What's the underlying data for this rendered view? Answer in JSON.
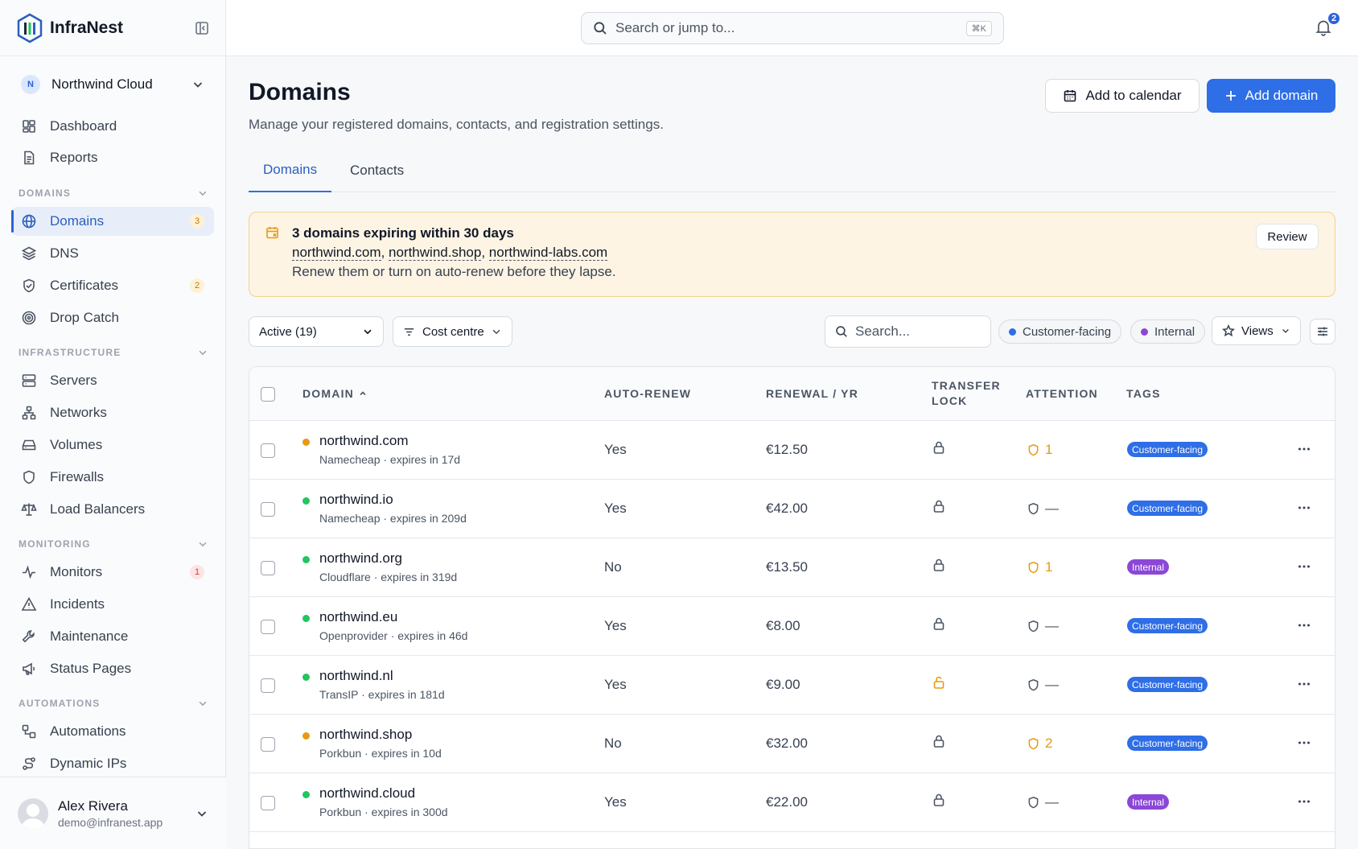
{
  "app": {
    "name": "InfraNest"
  },
  "org": {
    "initial": "N",
    "name": "Northwind Cloud"
  },
  "nav": {
    "top": [
      {
        "label": "Dashboard"
      },
      {
        "label": "Reports"
      }
    ],
    "sections": [
      {
        "title": "DOMAINS",
        "items": [
          {
            "label": "Domains",
            "badge": "3"
          },
          {
            "label": "DNS"
          },
          {
            "label": "Certificates",
            "badge": "2"
          },
          {
            "label": "Drop Catch"
          }
        ]
      },
      {
        "title": "INFRASTRUCTURE",
        "items": [
          {
            "label": "Servers"
          },
          {
            "label": "Networks"
          },
          {
            "label": "Volumes"
          },
          {
            "label": "Firewalls"
          },
          {
            "label": "Load Balancers"
          }
        ]
      },
      {
        "title": "MONITORING",
        "items": [
          {
            "label": "Monitors",
            "badge": "1"
          },
          {
            "label": "Incidents"
          },
          {
            "label": "Maintenance"
          },
          {
            "label": "Status Pages"
          }
        ]
      },
      {
        "title": "AUTOMATIONS",
        "items": [
          {
            "label": "Automations"
          },
          {
            "label": "Dynamic IPs"
          }
        ]
      }
    ]
  },
  "user": {
    "name": "Alex Rivera",
    "email": "demo@infranest.app"
  },
  "topbar": {
    "search_placeholder": "Search or jump to...",
    "shortcut": "⌘K",
    "notification_count": "2"
  },
  "page": {
    "title": "Domains",
    "subtitle": "Manage your registered domains, contacts, and registration settings.",
    "add_calendar_label": "Add to calendar",
    "add_domain_label": "Add domain"
  },
  "tabs": [
    {
      "label": "Domains"
    },
    {
      "label": "Contacts"
    }
  ],
  "alert": {
    "title": "3 domains expiring within 30 days",
    "links": [
      "northwind.com",
      "northwind.shop",
      "northwind-labs.com"
    ],
    "text": "Renew them or turn on auto-renew before they lapse.",
    "review_label": "Review"
  },
  "filters": {
    "status_selected": "Active (19)",
    "cost_centre_label": "Cost centre",
    "search_placeholder": "Search...",
    "chips": [
      {
        "label": "Customer-facing",
        "color": "#2e6ee6"
      },
      {
        "label": "Internal",
        "color": "#8b47d6"
      }
    ],
    "views_label": "Views"
  },
  "table": {
    "columns": {
      "domain": "DOMAIN",
      "auto_renew": "AUTO-RENEW",
      "renewal": "RENEWAL / YR",
      "transfer_lock_1": "TRANSFER",
      "transfer_lock_2": "LOCK",
      "attention": "ATTENTION",
      "tags": "TAGS"
    },
    "rows": [
      {
        "name": "northwind.com",
        "meta": "Namecheap · expires in 17d",
        "status": "warning",
        "auto_renew": "Yes",
        "renewal": "€12.50",
        "locked": true,
        "attention": "1",
        "attention_level": "warn",
        "tag": "Customer-facing",
        "tag_type": "customer"
      },
      {
        "name": "northwind.io",
        "meta": "Namecheap · expires in 209d",
        "status": "ok",
        "auto_renew": "Yes",
        "renewal": "€42.00",
        "locked": true,
        "attention": "—",
        "attention_level": "none",
        "tag": "Customer-facing",
        "tag_type": "customer"
      },
      {
        "name": "northwind.org",
        "meta": "Cloudflare · expires in 319d",
        "status": "ok",
        "auto_renew": "No",
        "renewal": "€13.50",
        "locked": true,
        "attention": "1",
        "attention_level": "warn",
        "tag": "Internal",
        "tag_type": "internal"
      },
      {
        "name": "northwind.eu",
        "meta": "Openprovider · expires in 46d",
        "status": "ok",
        "auto_renew": "Yes",
        "renewal": "€8.00",
        "locked": true,
        "attention": "—",
        "attention_level": "none",
        "tag": "Customer-facing",
        "tag_type": "customer"
      },
      {
        "name": "northwind.nl",
        "meta": "TransIP · expires in 181d",
        "status": "ok",
        "auto_renew": "Yes",
        "renewal": "€9.00",
        "locked": false,
        "attention": "—",
        "attention_level": "none",
        "tag": "Customer-facing",
        "tag_type": "customer"
      },
      {
        "name": "northwind.shop",
        "meta": "Porkbun · expires in 10d",
        "status": "warning",
        "auto_renew": "No",
        "renewal": "€32.00",
        "locked": true,
        "attention": "2",
        "attention_level": "warn",
        "tag": "Customer-facing",
        "tag_type": "customer"
      },
      {
        "name": "northwind.cloud",
        "meta": "Porkbun · expires in 300d",
        "status": "ok",
        "auto_renew": "Yes",
        "renewal": "€22.00",
        "locked": true,
        "attention": "—",
        "attention_level": "none",
        "tag": "Internal",
        "tag_type": "internal"
      }
    ]
  },
  "colors": {
    "accent": "#2e6ee6",
    "warning": "#e69a12",
    "ok": "#22c55e",
    "internal": "#8b47d6"
  }
}
